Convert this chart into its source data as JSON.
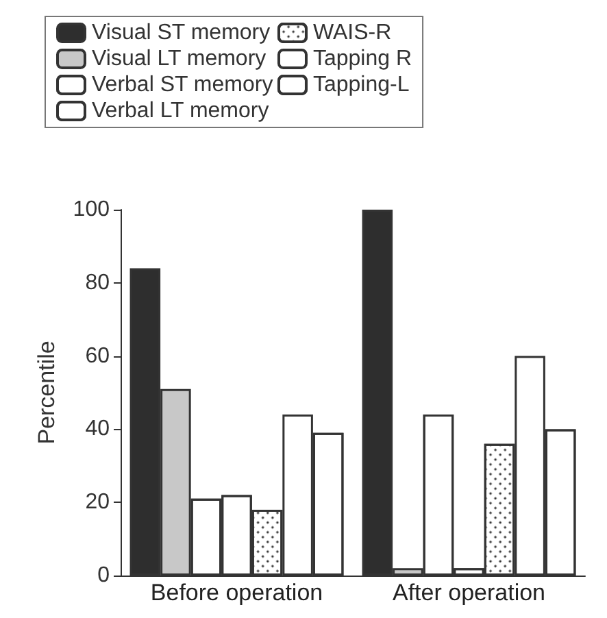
{
  "chart_data": {
    "type": "bar",
    "ylabel": "Percentile",
    "categories": [
      "Before operation",
      "After operation"
    ],
    "series": [
      {
        "name": "Visual ST memory",
        "color": "#2e2e2e",
        "values": [
          84,
          100
        ]
      },
      {
        "name": "Visual LT memory",
        "color": "#c8c8c8",
        "values": [
          51,
          2
        ]
      },
      {
        "name": "Verbal ST memory",
        "color": "#ffffff",
        "values": [
          21,
          44
        ]
      },
      {
        "name": "Verbal LT memory",
        "color": "#ffffff",
        "values": [
          22,
          2
        ]
      },
      {
        "name": "WAIS-R",
        "color": "#ffffff",
        "values": [
          18,
          36
        ]
      },
      {
        "name": "Tapping R",
        "color": "#ffffff",
        "values": [
          44,
          60
        ]
      },
      {
        "name": "Tapping-L",
        "color": "#ffffff",
        "values": [
          39,
          40
        ]
      }
    ],
    "ylim": [
      0,
      100
    ],
    "yticks": [
      0,
      20,
      40,
      60,
      80,
      100
    ],
    "grid": false,
    "legend": "top"
  }
}
